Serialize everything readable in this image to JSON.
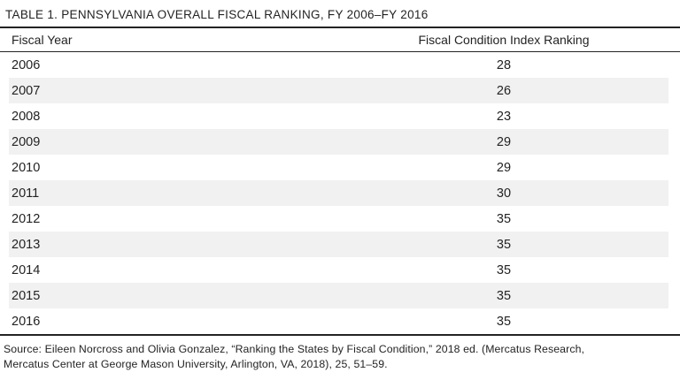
{
  "table": {
    "title": "TABLE 1. PENNSYLVANIA OVERALL FISCAL RANKING, FY 2006–FY 2016",
    "columns": [
      "Fiscal Year",
      "Fiscal Condition Index Ranking"
    ],
    "rows": [
      {
        "year": "2006",
        "ranking": "28"
      },
      {
        "year": "2007",
        "ranking": "26"
      },
      {
        "year": "2008",
        "ranking": "23"
      },
      {
        "year": "2009",
        "ranking": "29"
      },
      {
        "year": "2010",
        "ranking": "29"
      },
      {
        "year": "2011",
        "ranking": "30"
      },
      {
        "year": "2012",
        "ranking": "35"
      },
      {
        "year": "2013",
        "ranking": "35"
      },
      {
        "year": "2014",
        "ranking": "35"
      },
      {
        "year": "2015",
        "ranking": "35"
      },
      {
        "year": "2016",
        "ranking": "35"
      }
    ],
    "source": {
      "line1": "Source: Eileen Norcross and Olivia Gonzalez, “Ranking the States by Fiscal Condition,” 2018 ed. (Mercatus Research,",
      "line2": "Mercatus Center at George Mason University, Arlington, VA, 2018), 25, 51–59."
    }
  },
  "colors": {
    "text": "#232323",
    "rule": "#232323",
    "zebra_stripe": "#f1f1f1",
    "background": "#ffffff"
  },
  "chart_data": {
    "type": "table",
    "title": "TABLE 1. PENNSYLVANIA OVERALL FISCAL RANKING, FY 2006–FY 2016",
    "columns": [
      "Fiscal Year",
      "Fiscal Condition Index Ranking"
    ],
    "categories": [
      "2006",
      "2007",
      "2008",
      "2009",
      "2010",
      "2011",
      "2012",
      "2013",
      "2014",
      "2015",
      "2016"
    ],
    "values": [
      28,
      26,
      23,
      29,
      29,
      30,
      35,
      35,
      35,
      35,
      35
    ]
  }
}
